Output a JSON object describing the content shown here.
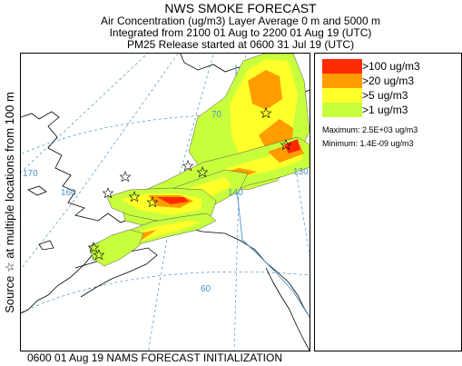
{
  "header": {
    "title": "NWS SMOKE FORECAST",
    "line1": "Air Concentration (ug/m3) Layer Average    0 m and  5000 m",
    "line2": "Integrated from 2100 01 Aug to 2200 01 Aug 19 (UTC)",
    "line3": "PM25 Release started at 0600 31 Jul 19 (UTC)"
  },
  "side_label": "Source ☆ at multiple locations     from   100 m",
  "legend": {
    "items": [
      {
        "label": ">100 ug/m3",
        "color": "#ff2a00"
      },
      {
        "label": ">20 ug/m3",
        "color": "#ff9c00"
      },
      {
        "label": ">5 ug/m3",
        "color": "#ffff2a"
      },
      {
        "label": ">1 ug/m3",
        "color": "#c8ff3c"
      }
    ],
    "maximum": "Maximum: 2.5E+03 ug/m3",
    "minimum": "Minimum: 1.4E-09 ug/m3"
  },
  "grid_labels": {
    "lat70": "70",
    "lat60": "60",
    "lon170": "170",
    "lon160": "160",
    "lon140": "140",
    "lon130": "130"
  },
  "footer": "0600 01 Aug 19 NAMS FORECAST INITIALIZATION"
}
